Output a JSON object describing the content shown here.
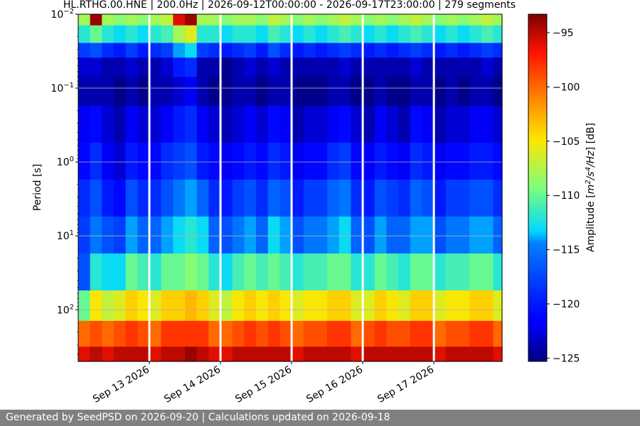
{
  "chart_data": {
    "type": "heatmap",
    "title": "HL.RTHG.00.HNE | 200.0Hz | 2026-09-12T00:00:00 - 2026-09-17T23:00:00 | 279 segments",
    "ylabel": "Period [s]",
    "y_scale": "log",
    "y_inverted": true,
    "ylim": [
      0.01,
      500
    ],
    "y_ticks": [
      {
        "value": 0.01,
        "label": "10",
        "exp": "−2"
      },
      {
        "value": 0.1,
        "label": "10",
        "exp": "−1"
      },
      {
        "value": 1,
        "label": "10",
        "exp": "0"
      },
      {
        "value": 10,
        "label": "10",
        "exp": "1"
      },
      {
        "value": 100,
        "label": "10",
        "exp": "2"
      }
    ],
    "x_type": "date",
    "xlim": [
      "2026-09-12T00:00:00",
      "2026-09-17T23:00:00"
    ],
    "x_ticks": [
      {
        "value": "2026-09-13T00:00:00",
        "label": "Sep 13 2026"
      },
      {
        "value": "2026-09-14T00:00:00",
        "label": "Sep 14 2026"
      },
      {
        "value": "2026-09-15T00:00:00",
        "label": "Sep 15 2026"
      },
      {
        "value": "2026-09-16T00:00:00",
        "label": "Sep 16 2026"
      },
      {
        "value": "2026-09-17T00:00:00",
        "label": "Sep 17 2026"
      }
    ],
    "data_gaps": [
      "2026-09-13T00:00:00",
      "2026-09-14T00:00:00",
      "2026-09-15T00:00:00",
      "2026-09-16T00:00:00",
      "2026-09-17T00:00:00"
    ],
    "grid": "y",
    "colormap": "jet",
    "colorbar": {
      "label": "Amplitude [m²/s⁴/Hz] [dB]",
      "label_parts": {
        "pre": "Amplitude [",
        "u1": "m",
        "s1": "2",
        "u2": "/s",
        "s2": "4",
        "u3": "/Hz",
        "post": "] [dB]"
      },
      "range": [
        -125.3,
        -93.3
      ],
      "ticks": [
        -95,
        -100,
        -105,
        -110,
        -115,
        -120,
        -125
      ],
      "tick_labels": [
        "−95",
        "−100",
        "−105",
        "−110",
        "−115",
        "−120",
        "−125"
      ]
    },
    "time_hours": [
      0,
      4,
      8,
      12,
      16,
      20,
      24,
      28,
      32,
      36,
      40,
      44,
      48,
      52,
      56,
      60,
      64,
      68,
      72,
      76,
      80,
      84,
      88,
      92,
      96,
      100,
      104,
      108,
      112,
      116,
      120,
      124,
      128,
      132,
      136,
      140,
      143
    ],
    "period_s": [
      0.01,
      0.02,
      0.03,
      0.05,
      0.1,
      0.3,
      1,
      3,
      10,
      30,
      100,
      200,
      500
    ],
    "values_db": [
      [
        -108,
        -112,
        -118,
        -123,
        -124,
        -122,
        -121,
        -119,
        -118,
        -117,
        -110,
        -100,
        -96
      ],
      [
        -94,
        -110,
        -117,
        -123,
        -124,
        -121,
        -119,
        -117,
        -115,
        -112,
        -105,
        -99,
        -95
      ],
      [
        -108,
        -112,
        -119,
        -124,
        -124,
        -123,
        -122,
        -120,
        -117,
        -113,
        -107,
        -100,
        -96
      ],
      [
        -109,
        -113,
        -120,
        -124,
        -125,
        -124,
        -123,
        -121,
        -118,
        -113,
        -106,
        -99,
        -95
      ],
      [
        -108,
        -112,
        -118,
        -123,
        -124,
        -122,
        -120,
        -117,
        -114,
        -110,
        -104,
        -98,
        -95
      ],
      [
        -109,
        -113,
        -120,
        -124,
        -125,
        -123,
        -121,
        -119,
        -116,
        -111,
        -105,
        -99,
        -95
      ],
      [
        -108,
        -112,
        -119,
        -124,
        -124,
        -123,
        -121,
        -119,
        -116,
        -112,
        -106,
        -100,
        -96
      ],
      [
        -107,
        -111,
        -118,
        -123,
        -124,
        -122,
        -119,
        -117,
        -114,
        -110,
        -104,
        -98,
        -95
      ],
      [
        -96,
        -108,
        -114,
        -120,
        -123,
        -120,
        -118,
        -115,
        -113,
        -110,
        -104,
        -98,
        -95
      ],
      [
        -94,
        -106,
        -113,
        -119,
        -122,
        -119,
        -117,
        -114,
        -112,
        -109,
        -103,
        -98,
        -94
      ],
      [
        -108,
        -112,
        -118,
        -124,
        -124,
        -122,
        -120,
        -116,
        -113,
        -110,
        -104,
        -98,
        -95
      ],
      [
        -108,
        -112,
        -119,
        -124,
        -125,
        -123,
        -121,
        -119,
        -116,
        -112,
        -106,
        -100,
        -96
      ],
      [
        -109,
        -113,
        -120,
        -125,
        -125,
        -124,
        -122,
        -120,
        -117,
        -113,
        -107,
        -100,
        -96
      ],
      [
        -108,
        -112,
        -119,
        -124,
        -124,
        -123,
        -121,
        -118,
        -115,
        -111,
        -105,
        -99,
        -95
      ],
      [
        -108,
        -112,
        -118,
        -123,
        -124,
        -122,
        -120,
        -117,
        -114,
        -110,
        -104,
        -98,
        -95
      ],
      [
        -109,
        -113,
        -120,
        -124,
        -125,
        -123,
        -121,
        -119,
        -116,
        -111,
        -105,
        -99,
        -95
      ],
      [
        -107,
        -111,
        -117,
        -123,
        -124,
        -121,
        -119,
        -116,
        -113,
        -110,
        -104,
        -98,
        -95
      ],
      [
        -108,
        -112,
        -119,
        -124,
        -124,
        -122,
        -120,
        -117,
        -114,
        -111,
        -105,
        -99,
        -95
      ],
      [
        -109,
        -113,
        -120,
        -124,
        -125,
        -124,
        -122,
        -120,
        -117,
        -112,
        -106,
        -100,
        -96
      ],
      [
        -108,
        -112,
        -119,
        -124,
        -125,
        -123,
        -121,
        -118,
        -115,
        -111,
        -105,
        -99,
        -95
      ],
      [
        -109,
        -113,
        -120,
        -124,
        -125,
        -123,
        -121,
        -118,
        -115,
        -111,
        -105,
        -99,
        -95
      ],
      [
        -108,
        -112,
        -119,
        -124,
        -124,
        -122,
        -119,
        -116,
        -114,
        -110,
        -104,
        -98,
        -95
      ],
      [
        -107,
        -111,
        -118,
        -123,
        -124,
        -121,
        -118,
        -115,
        -113,
        -110,
        -104,
        -98,
        -95
      ],
      [
        -108,
        -112,
        -119,
        -124,
        -125,
        -123,
        -121,
        -119,
        -116,
        -112,
        -106,
        -100,
        -96
      ],
      [
        -109,
        -113,
        -120,
        -124,
        -125,
        -124,
        -122,
        -120,
        -117,
        -112,
        -106,
        -99,
        -95
      ],
      [
        -108,
        -112,
        -119,
        -124,
        -124,
        -122,
        -120,
        -117,
        -114,
        -110,
        -104,
        -98,
        -95
      ],
      [
        -109,
        -113,
        -120,
        -124,
        -125,
        -123,
        -121,
        -118,
        -116,
        -111,
        -105,
        -99,
        -95
      ],
      [
        -108,
        -112,
        -119,
        -124,
        -125,
        -124,
        -122,
        -119,
        -116,
        -112,
        -106,
        -99,
        -95
      ],
      [
        -107,
        -111,
        -118,
        -123,
        -124,
        -121,
        -119,
        -116,
        -114,
        -110,
        -104,
        -98,
        -95
      ],
      [
        -108,
        -112,
        -119,
        -124,
        -124,
        -122,
        -120,
        -117,
        -114,
        -110,
        -104,
        -98,
        -95
      ],
      [
        -109,
        -113,
        -120,
        -124,
        -125,
        -124,
        -122,
        -120,
        -117,
        -112,
        -106,
        -100,
        -96
      ],
      [
        -108,
        -112,
        -119,
        -124,
        -124,
        -123,
        -121,
        -118,
        -115,
        -111,
        -105,
        -99,
        -95
      ],
      [
        -109,
        -113,
        -120,
        -124,
        -125,
        -123,
        -121,
        -118,
        -115,
        -111,
        -105,
        -99,
        -95
      ],
      [
        -108,
        -112,
        -119,
        -124,
        -124,
        -122,
        -120,
        -117,
        -114,
        -110,
        -104,
        -98,
        -95
      ],
      [
        -107,
        -111,
        -118,
        -123,
        -124,
        -122,
        -120,
        -117,
        -114,
        -110,
        -104,
        -98,
        -95
      ],
      [
        -108,
        -112,
        -119,
        -124,
        -125,
        -123,
        -121,
        -119,
        -116,
        -112,
        -106,
        -100,
        -96
      ],
      [
        -108,
        -112,
        -119,
        -124,
        -125,
        -123,
        -121,
        -118,
        -115,
        -111,
        -105,
        -99,
        -95
      ]
    ]
  },
  "footer": {
    "text": "Generated by SeedPSD on 2026-09-20 | Calculations updated on 2026-09-18"
  }
}
